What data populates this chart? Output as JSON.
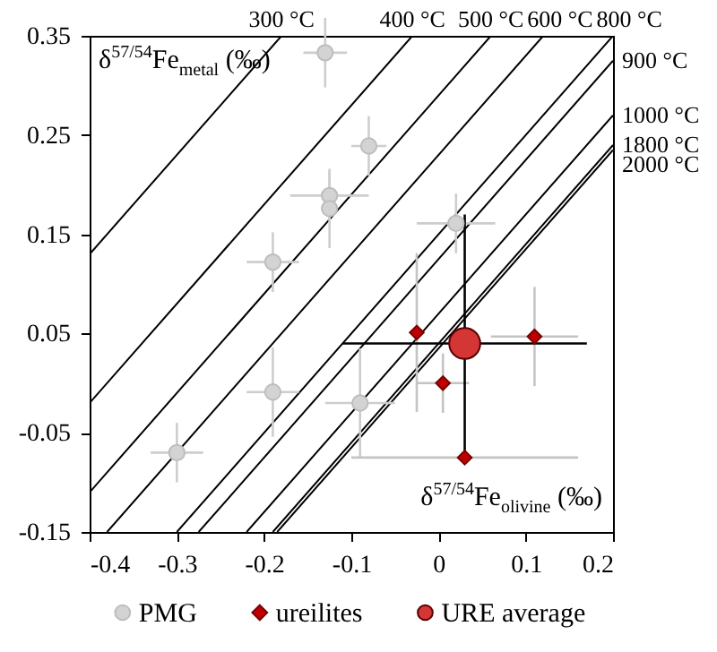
{
  "chart_data": {
    "type": "scatter",
    "xlabel": "δ$^{57/54}$Fe$_{olivine}$ (‰)",
    "ylabel": "δ$^{57/54}$Fe$_{metal}$ (‰)",
    "xlim": [
      -0.4,
      0.2
    ],
    "ylim": [
      -0.15,
      0.35
    ],
    "xticks": [
      -0.4,
      -0.3,
      -0.2,
      -0.1,
      0,
      0.1,
      0.2
    ],
    "yticks": [
      -0.15,
      -0.05,
      0.05,
      0.15,
      0.25,
      0.35
    ],
    "legend": "bottom",
    "series": [
      {
        "type": "line",
        "name": "300 °C",
        "color": "#000000",
        "x": [
          -0.4,
          -0.18
        ],
        "values": [
          0.13,
          0.35
        ]
      },
      {
        "type": "line",
        "name": "400 °C",
        "color": "#000000",
        "x": [
          -0.4,
          -0.03
        ],
        "values": [
          -0.02,
          0.35
        ]
      },
      {
        "type": "line",
        "name": "500 °C",
        "color": "#000000",
        "x": [
          -0.4,
          0.06
        ],
        "values": [
          -0.11,
          0.35
        ]
      },
      {
        "type": "line",
        "name": "600 °C",
        "color": "#000000",
        "x": [
          -0.38,
          0.12
        ],
        "values": [
          -0.15,
          0.35
        ]
      },
      {
        "type": "line",
        "name": "800 °C",
        "color": "#000000",
        "x": [
          -0.3,
          0.2
        ],
        "values": [
          -0.15,
          0.35
        ]
      },
      {
        "type": "line",
        "name": "900 °C",
        "color": "#000000",
        "x": [
          -0.275,
          0.2
        ],
        "values": [
          -0.15,
          0.325
        ]
      },
      {
        "type": "line",
        "name": "1000 °C",
        "color": "#000000",
        "x": [
          -0.22,
          0.2
        ],
        "values": [
          -0.15,
          0.27
        ]
      },
      {
        "type": "line",
        "name": "1800 °C",
        "color": "#000000",
        "x": [
          -0.19,
          0.2
        ],
        "values": [
          -0.15,
          0.24
        ]
      },
      {
        "type": "line",
        "name": "2000 °C",
        "color": "#000000",
        "x": [
          -0.185,
          0.2
        ],
        "values": [
          -0.15,
          0.235
        ]
      },
      {
        "name": "PMG",
        "color": "#d3d3d3",
        "marker": "circle",
        "x": [
          -0.13,
          -0.08,
          -0.125,
          -0.125,
          -0.19,
          0.02,
          -0.19,
          -0.09,
          -0.3
        ],
        "values": [
          0.333,
          0.239,
          0.189,
          0.176,
          0.122,
          0.161,
          -0.009,
          -0.02,
          -0.07
        ],
        "xerrors": [
          0.025,
          0.02,
          0.045,
          null,
          0.03,
          0.045,
          0.03,
          0.04,
          0.03
        ],
        "errors": [
          0.035,
          0.03,
          0.025,
          0.04,
          0.03,
          0.03,
          0.045,
          0.055,
          0.03
        ]
      },
      {
        "name": "ureilites",
        "color": "#c00000",
        "marker": "diamond",
        "x": [
          -0.025,
          0.11,
          0.005,
          0.03
        ],
        "values": [
          0.051,
          0.047,
          0.0,
          -0.075
        ],
        "xerrors": [
          null,
          0.05,
          0.03,
          0.13
        ],
        "errors": [
          0.08,
          0.05,
          0.03,
          null
        ]
      },
      {
        "name": "URE average",
        "color": "#d43535",
        "marker": "circle",
        "x": [
          0.03
        ],
        "values": [
          0.04
        ],
        "xerrors": [
          [
            -0.11,
            0.17
          ]
        ],
        "errors": [
          [
            -0.08,
            0.17
          ]
        ]
      }
    ]
  }
}
